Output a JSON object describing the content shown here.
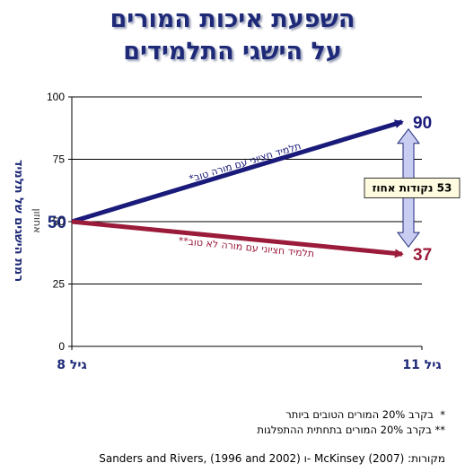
{
  "title_line1": "השפעת איכות המורים",
  "title_line2": "על הישגי התלמידים",
  "chart_data": {
    "type": "line",
    "x": [
      "גיל 8",
      "גיל 11"
    ],
    "ylim": [
      0,
      100
    ],
    "yticks": [
      0,
      25,
      50,
      75,
      100
    ],
    "ylabel": "רמת הישגים של תלמיד",
    "ylabel_sub": "אחוזון",
    "series": [
      {
        "name": "תלמיד חציוני עם מורה טוב*",
        "values": [
          50,
          90
        ],
        "color": "#1a1a7a",
        "end_label": "90"
      },
      {
        "name": "תלמיד חציוני עם מורה לא טוב**",
        "values": [
          50,
          37
        ],
        "color": "#9b1b3a",
        "end_label": "37"
      }
    ],
    "start_label": "50",
    "gap_annotation": "53 נקודות אחוז",
    "grid": true
  },
  "notes": {
    "note1_mark": "*",
    "note1": "בקרב 20% המורים הטובים ביותר",
    "note2_mark": "**",
    "note2": "בקרב 20% המורים בתחתית ההתפלגות",
    "source": "מקורות:  McKinsey (2007) -ו Sanders and Rivers, (1996 and 2002)"
  },
  "colors": {
    "title": "#1e2a78",
    "grid": "#000000",
    "arrow_fill": "#c9cdf2"
  }
}
